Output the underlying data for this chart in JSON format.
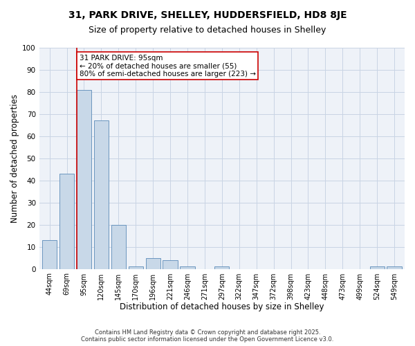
{
  "title1": "31, PARK DRIVE, SHELLEY, HUDDERSFIELD, HD8 8JE",
  "title2": "Size of property relative to detached houses in Shelley",
  "xlabel": "Distribution of detached houses by size in Shelley",
  "ylabel": "Number of detached properties",
  "categories": [
    "44sqm",
    "69sqm",
    "95sqm",
    "120sqm",
    "145sqm",
    "170sqm",
    "196sqm",
    "221sqm",
    "246sqm",
    "271sqm",
    "297sqm",
    "322sqm",
    "347sqm",
    "372sqm",
    "398sqm",
    "423sqm",
    "448sqm",
    "473sqm",
    "499sqm",
    "524sqm",
    "549sqm"
  ],
  "values": [
    13,
    43,
    81,
    67,
    20,
    1,
    5,
    4,
    1,
    0,
    1,
    0,
    0,
    0,
    0,
    0,
    0,
    0,
    0,
    1,
    1
  ],
  "bar_color": "#c8d8e8",
  "bar_edge_color": "#5a8ab8",
  "highlight_index": 2,
  "highlight_line_color": "#cc0000",
  "annotation_box_color": "#cc0000",
  "annotation_text": "31 PARK DRIVE: 95sqm\n← 20% of detached houses are smaller (55)\n80% of semi-detached houses are larger (223) →",
  "annotation_fontsize": 7.5,
  "ylim": [
    0,
    100
  ],
  "yticks": [
    0,
    10,
    20,
    30,
    40,
    50,
    60,
    70,
    80,
    90,
    100
  ],
  "grid_color": "#c8d4e4",
  "background_color": "#eef2f8",
  "footer": "Contains HM Land Registry data © Crown copyright and database right 2025.\nContains public sector information licensed under the Open Government Licence v3.0.",
  "title1_fontsize": 10,
  "title2_fontsize": 9,
  "xlabel_fontsize": 8.5,
  "ylabel_fontsize": 8.5,
  "footer_fontsize": 6.0
}
